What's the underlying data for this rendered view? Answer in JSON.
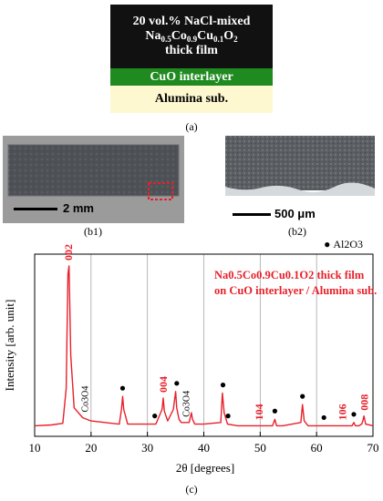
{
  "schematic": {
    "film_line1": "20 vol.% NaCl-mixed",
    "film_formula": {
      "na": "Na",
      "na_sub": "0.5",
      "co": "Co",
      "co_sub": "0.9",
      "cu": "Cu",
      "cu_sub": "0.1",
      "o": "O",
      "o_sub": "2"
    },
    "film_line3": "thick film",
    "interlayer": "CuO interlayer",
    "substrate": "Alumina sub.",
    "caption": "(a)"
  },
  "photos": {
    "b1_scale": "2 mm",
    "b1_caption": "(b1)",
    "b2_scale": "500 μm",
    "b2_caption": "(b2)"
  },
  "figure_caption": "(c)",
  "colors": {
    "accent_red": "#e8202a",
    "film_black": "#111111",
    "cuo_green": "#1f8a1f",
    "alumina_yellow": "#fdf8d0",
    "grid": "#a6a6a6"
  },
  "chart_data": {
    "type": "line",
    "xlabel": "2θ [degrees]",
    "ylabel": "Intensity [arb. unit]",
    "xlim": [
      10,
      70
    ],
    "x_ticks": [
      10,
      20,
      30,
      40,
      50,
      60,
      70
    ],
    "vertical_grid_at": [
      20,
      30,
      40,
      50,
      60
    ],
    "legend": {
      "marker": "●",
      "label": "Al2O3",
      "position": "top-right"
    },
    "annotation_line1": "Na0.5Co0.9Cu0.1O2 thick film",
    "annotation_line2": "on CuO interlayer / Alumina sub.",
    "series": [
      {
        "x": [
          10,
          13,
          15,
          15.6,
          15.9,
          16.1,
          16.4,
          17,
          18.5,
          20,
          25,
          25.4,
          25.6,
          25.8,
          26.5,
          31.5,
          32.6,
          32.8,
          33.0,
          33.6,
          34.6,
          35.0,
          35.2,
          35.6,
          36.0,
          37.4,
          37.8,
          38.0,
          38.4,
          40.0,
          43.0,
          43.3,
          43.6,
          44.2,
          46.0,
          52.2,
          52.6,
          52.9,
          54.0,
          57.2,
          57.5,
          57.8,
          58.5,
          61.0,
          66.3,
          66.6,
          66.9,
          67.5,
          68.0,
          68.2,
          68.4,
          68.7,
          70
        ],
        "y": [
          0.02,
          0.025,
          0.035,
          0.25,
          0.95,
          1.0,
          0.45,
          0.13,
          0.07,
          0.05,
          0.03,
          0.12,
          0.2,
          0.12,
          0.03,
          0.03,
          0.12,
          0.19,
          0.11,
          0.05,
          0.12,
          0.23,
          0.13,
          0.06,
          0.04,
          0.04,
          0.1,
          0.06,
          0.03,
          0.03,
          0.04,
          0.22,
          0.1,
          0.03,
          0.02,
          0.02,
          0.06,
          0.02,
          0.02,
          0.04,
          0.15,
          0.05,
          0.02,
          0.02,
          0.02,
          0.04,
          0.02,
          0.02,
          0.03,
          0.05,
          0.08,
          0.03,
          0.02
        ]
      }
    ],
    "peak_labels": [
      {
        "text": "002",
        "x": 16.0,
        "y": 1.0,
        "color": "red"
      },
      {
        "text": "004",
        "x": 32.8,
        "y": 0.19,
        "color": "red"
      },
      {
        "text": "104",
        "x": 49.8,
        "y": 0.02,
        "color": "red"
      },
      {
        "text": "106",
        "x": 64.6,
        "y": 0.02,
        "color": "red"
      },
      {
        "text": "008",
        "x": 68.5,
        "y": 0.08,
        "color": "red"
      },
      {
        "text": "Co3O4",
        "x": 18.8,
        "y": 0.07,
        "color": "black"
      },
      {
        "text": "Co3O4",
        "x": 36.8,
        "y": 0.04,
        "color": "black"
      }
    ],
    "al2o3_markers": [
      {
        "x": 25.6,
        "y": 0.2
      },
      {
        "x": 31.3,
        "y": 0.03
      },
      {
        "x": 35.2,
        "y": 0.23
      },
      {
        "x": 43.4,
        "y": 0.22
      },
      {
        "x": 44.3,
        "y": 0.03
      },
      {
        "x": 52.6,
        "y": 0.06
      },
      {
        "x": 57.5,
        "y": 0.15
      },
      {
        "x": 61.3,
        "y": 0.02
      },
      {
        "x": 66.6,
        "y": 0.04
      }
    ]
  }
}
